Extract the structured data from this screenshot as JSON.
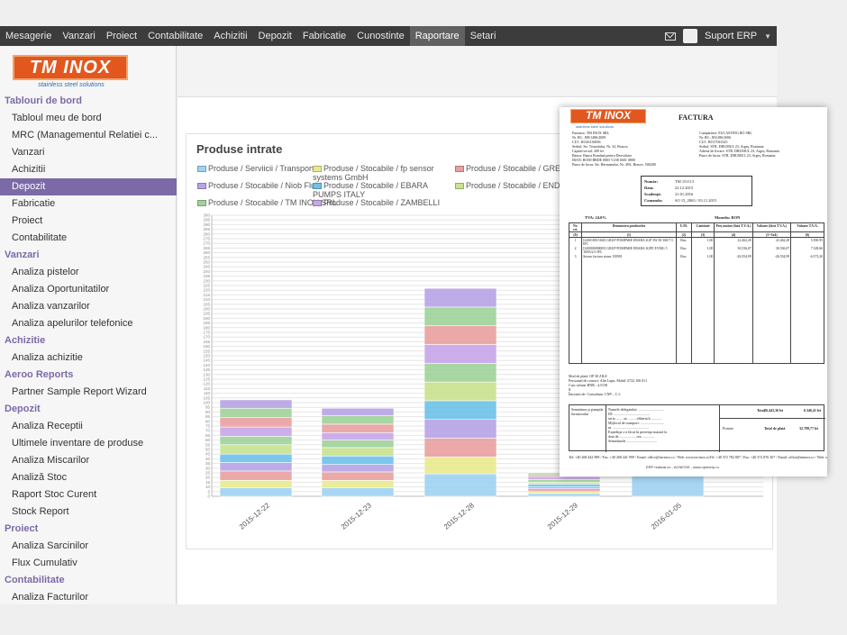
{
  "nav": {
    "items": [
      "Mesagerie",
      "Vanzari",
      "Proiect",
      "Contabilitate",
      "Achizitii",
      "Depozit",
      "Fabricatie",
      "Cunostinte",
      "Raportare",
      "Setari"
    ],
    "active_index": 8,
    "user_label": "Suport ERP"
  },
  "logo": {
    "text": "TM INOX",
    "tagline": "stainless steel solutions"
  },
  "sidebar": {
    "sections": [
      {
        "title": "Tablouri de bord",
        "items": [
          "Tabloul meu de bord",
          "MRC (Managementul Relatiei c...",
          "Vanzari",
          "Achizitii",
          "Depozit",
          "Fabricatie",
          "Proiect",
          "Contabilitate"
        ],
        "active": 4
      },
      {
        "title": "Vanzari",
        "items": [
          "Analiza pistelor",
          "Analiza Oportunitatilor",
          "Analiza vanzarilor",
          "Analiza apelurilor telefonice"
        ],
        "active": -1
      },
      {
        "title": "Achizitie",
        "items": [
          "Analiza achizitie"
        ],
        "active": -1
      },
      {
        "title": "Aeroo Reports",
        "items": [
          "Partner Sample Report Wizard"
        ],
        "active": -1
      },
      {
        "title": "Depozit",
        "items": [
          "Analiza Receptii",
          "Ultimele inventare de produse",
          "Analiza Miscarilor",
          "Analiză Stoc",
          "Raport Stoc Curent",
          "Stock Report"
        ],
        "active": -1
      },
      {
        "title": "Proiect",
        "items": [
          "Analiza Sarcinilor",
          "Flux Cumulativ"
        ],
        "active": -1
      },
      {
        "title": "Contabilitate",
        "items": [
          "Analiza Facturilor"
        ],
        "active": -1
      }
    ]
  },
  "panel": {
    "title": "Produse intrate"
  },
  "chart_data": {
    "type": "bar",
    "stacked": true,
    "title": "Produse intrate",
    "categories": [
      "2015-12-22",
      "2015-12-23",
      "2015-12-28",
      "2015-12-29",
      "2016-01-05"
    ],
    "ylim": [
      0,
      300
    ],
    "yticks": [
      0,
      5,
      10,
      15,
      20,
      25,
      30,
      35,
      40,
      45,
      50,
      55,
      60,
      65,
      70,
      75,
      80,
      85,
      90,
      95,
      100,
      105,
      110,
      115,
      120,
      125,
      130,
      135,
      140,
      145,
      150,
      155,
      160,
      165,
      170,
      175,
      180,
      185,
      190,
      195,
      200,
      205,
      210,
      215,
      220,
      225,
      230,
      235,
      240,
      245,
      250,
      255,
      260,
      265,
      270,
      275,
      280,
      285,
      290,
      295,
      300
    ],
    "legend_position": "top",
    "series": [
      {
        "name": "Produse / Serviicii / Transport",
        "color": "#9fd3f2",
        "values": [
          9,
          9,
          24,
          3,
          28
        ]
      },
      {
        "name": "Produse / Stocabile / fp sensor systems GmbH",
        "color": "#e8ea8f",
        "values": [
          8,
          8,
          18,
          2,
          0
        ]
      },
      {
        "name": "Produse / Stocabile / GREC",
        "color": "#e9a0a0",
        "values": [
          10,
          9,
          20,
          3,
          0
        ]
      },
      {
        "name": "Produse / Stocabile / Niob Fluid",
        "color": "#b8a4e6",
        "values": [
          9,
          8,
          20,
          2,
          0
        ]
      },
      {
        "name": "Produse / Stocabile / EBARA PUMPS ITALY",
        "color": "#6ec1ea",
        "values": [
          9,
          9,
          20,
          3,
          0
        ]
      },
      {
        "name": "Produse / Stocabile / ENDR SRL",
        "color": "#c9e38e",
        "values": [
          10,
          9,
          20,
          2,
          0
        ]
      },
      {
        "name": "Produse / Stocabile / TM INOX SRL",
        "color": "#9fd39a",
        "values": [
          9,
          8,
          20,
          3,
          0
        ]
      },
      {
        "name": "Produse / Stocabile / ZAMBELLI",
        "color": "#c8a6ea",
        "values": [
          10,
          8,
          20,
          3,
          0
        ]
      },
      {
        "name": "",
        "color": "#e9a0a0",
        "values": [
          10,
          9,
          20,
          2,
          0
        ]
      },
      {
        "name": "",
        "color": "#9fd39a",
        "values": [
          10,
          9,
          20,
          2,
          0
        ]
      },
      {
        "name": "",
        "color": "#b8a4e6",
        "values": [
          9,
          8,
          20,
          0,
          0
        ]
      }
    ]
  },
  "invoice": {
    "logo": "TM INOX",
    "logo_tagline": "stainless steel solutions",
    "title": "FACTURA",
    "seller_lines": [
      "Furnizor: TM INOX SRL",
      "Nr. RC: J08/1486/2009",
      "CUI : RO26136836",
      "Sediul: Str. Triumfului, Nr. 32, Brasov,",
      "Capital social: 200 lei",
      "Banca: Banca Română pentru Dezvoltare",
      "IBAN: RO00 BRDE 0805 V238 6601 0800",
      "Punct de lucru: Str. Harmanului, Nr. 49A, Brasov, 500280"
    ],
    "buyer_lines": [
      "Cumpărător: EUCASTING RO SRL",
      "Nr. RC: J03/286/2006",
      "CUI : RO17043325",
      "Sediul: STR. DRUMUL 23, Argeș, Romania",
      "Adresă de livrare: STR. DRUMUL 23, Argeș, Romania",
      "Punct de lucru: STR. DRUMUL 23, Argeș, Romania"
    ],
    "meta": [
      {
        "k": "Număr:",
        "v": "TM 151113"
      },
      {
        "k": "Data:",
        "v": "22.12.2015"
      },
      {
        "k": "Scadenţă:",
        "v": "21.01.2016"
      },
      {
        "k": "Comanda:",
        "v": "SO 15_2063 / 03.11.2015"
      }
    ],
    "tva": "TVA: 24.0%",
    "moneda": "Moneda: RON",
    "headers": [
      "Nr. crt.",
      "Denumirea produselor",
      "U.M.",
      "Cantitate",
      "Preţ unitar (fără T.V.A.)",
      "Valoare (fără T.V.A.)",
      "Valoare T.V.A."
    ],
    "col_index": [
      "(0)",
      "(1)",
      "(2)",
      "(3)",
      "(4)",
      "(5=3x4)",
      "(6)"
    ],
    "rows": [
      {
        "nr": "1",
        "name": "[220018015160] GRUP POMPARE EBARA 2GP 3W 50-160/7.5 IFC",
        "um": "Buc.",
        "qty": "1,00",
        "price": "22.462,28",
        "value": "22.462,28",
        "tva": "5.390,95"
      },
      {
        "nr": "2",
        "name": "[220000000005] GRUP POMPARE EBARA 3GPE EVMG 5 16N5/2.0 IFC",
        "um": "Buc.",
        "qty": "1,00",
        "price": "30.536,07",
        "value": "30.536,07",
        "tva": "7.328,66"
      },
      {
        "nr": "3",
        "name": "Storno factura avans 150901",
        "um": "Buc.",
        "qty": "1,00",
        "price": "-26.554,99",
        "value": "-26.554,99",
        "tva": "-6.373,20"
      }
    ],
    "foot_lines": [
      "Mod de plată: OP 30 ZILE",
      "Persoanal de contact: Alin Lupu, Mobil: 0722 106 811",
      "Curs valutar BNR : 4,5138",
      "$",
      "Întocmit de: Consultant, CNP: , C.I:"
    ],
    "sign_left": "Semnătura şi ştampila furnizorului",
    "delegat_lines": [
      "Numele delegatului: ............................",
      "ID: ........................................",
      "seria ........ nr. ........ eliberat/ă ............",
      "Mijlocul de transport: ..........................",
      "nr. ........................................",
      "Expediţia s-a făcut în prezenţa noastră la",
      "data de .................. ora ..............",
      "Semnăturile .................................."
    ],
    "total_label": "Total",
    "total_value": "26.443,36 lei",
    "total_tva": "6.346,41 lei",
    "primire": "Primire",
    "total_plata_label": "Total de plată",
    "total_plata_value": "32.789,77 lei",
    "addresses": [
      "Tel: +40 268 442 989 / Fax: +40 268 441 999 / Email: office@tm-inox.ro / Web: www.tm-inox.ro",
      "Tel: +40 372 782 807 / Fax: +40 372 876 307 / Email: office@tminox.ro / Web: www.tminox.ro / www.pompe-inox.ro"
    ],
    "brand": "ERP realizat cu - ACNESIS - www.openerp.ro"
  }
}
